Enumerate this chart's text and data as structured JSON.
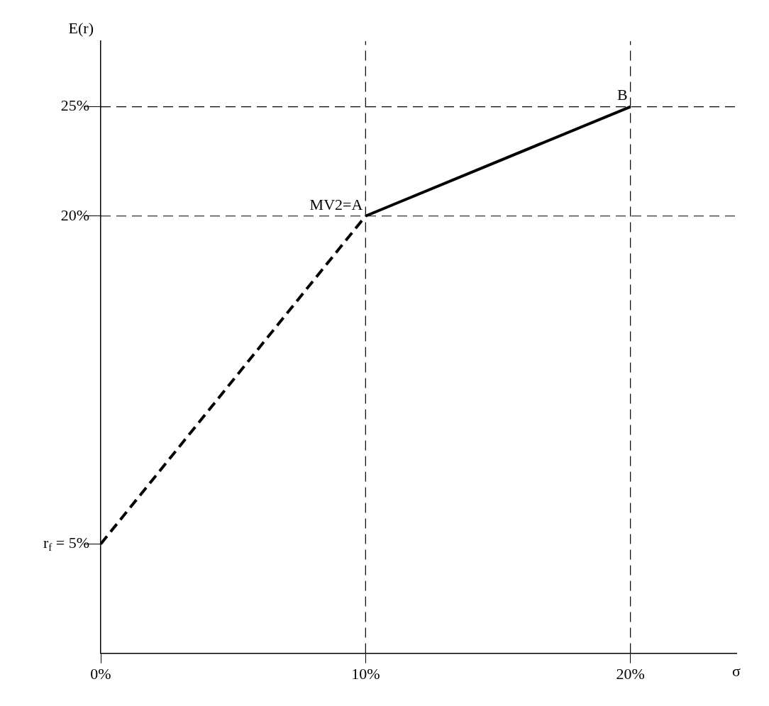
{
  "chart_data": {
    "type": "line",
    "xlabel": "σ",
    "ylabel": "E(r)",
    "xlim": [
      0,
      24
    ],
    "ylim": [
      0,
      28
    ],
    "xticks": [
      {
        "value": 0,
        "label": "0%"
      },
      {
        "value": 10,
        "label": "10%"
      },
      {
        "value": 20,
        "label": "20%"
      }
    ],
    "yticks": [
      {
        "value": 5,
        "label": "r$_{f}$ = 5%"
      },
      {
        "value": 20,
        "label": "20%"
      },
      {
        "value": 25,
        "label": "25%"
      }
    ],
    "grid": false,
    "legend": false,
    "marker": "none",
    "series": [
      {
        "x": [
          0,
          10
        ],
        "values": [
          5,
          20
        ],
        "color": "#000000",
        "line_style": "dashed"
      },
      {
        "x": [
          10,
          20
        ],
        "values": [
          20,
          25
        ],
        "color": "#000000",
        "line_style": "solid"
      }
    ],
    "ref_lines": [
      {
        "axis": "y",
        "value": 25,
        "color": "#000000",
        "line_style": "dashed"
      },
      {
        "axis": "y",
        "value": 20,
        "color": "#000000",
        "line_style": "dashed"
      },
      {
        "axis": "x",
        "value": 10,
        "color": "#000000",
        "line_style": "dashed"
      },
      {
        "axis": "x",
        "value": 20,
        "color": "#000000",
        "line_style": "dashed"
      }
    ],
    "annotations": [
      {
        "text": "MV2=A",
        "x": 10,
        "y": 20
      },
      {
        "text": "B",
        "x": 20,
        "y": 25
      }
    ]
  }
}
